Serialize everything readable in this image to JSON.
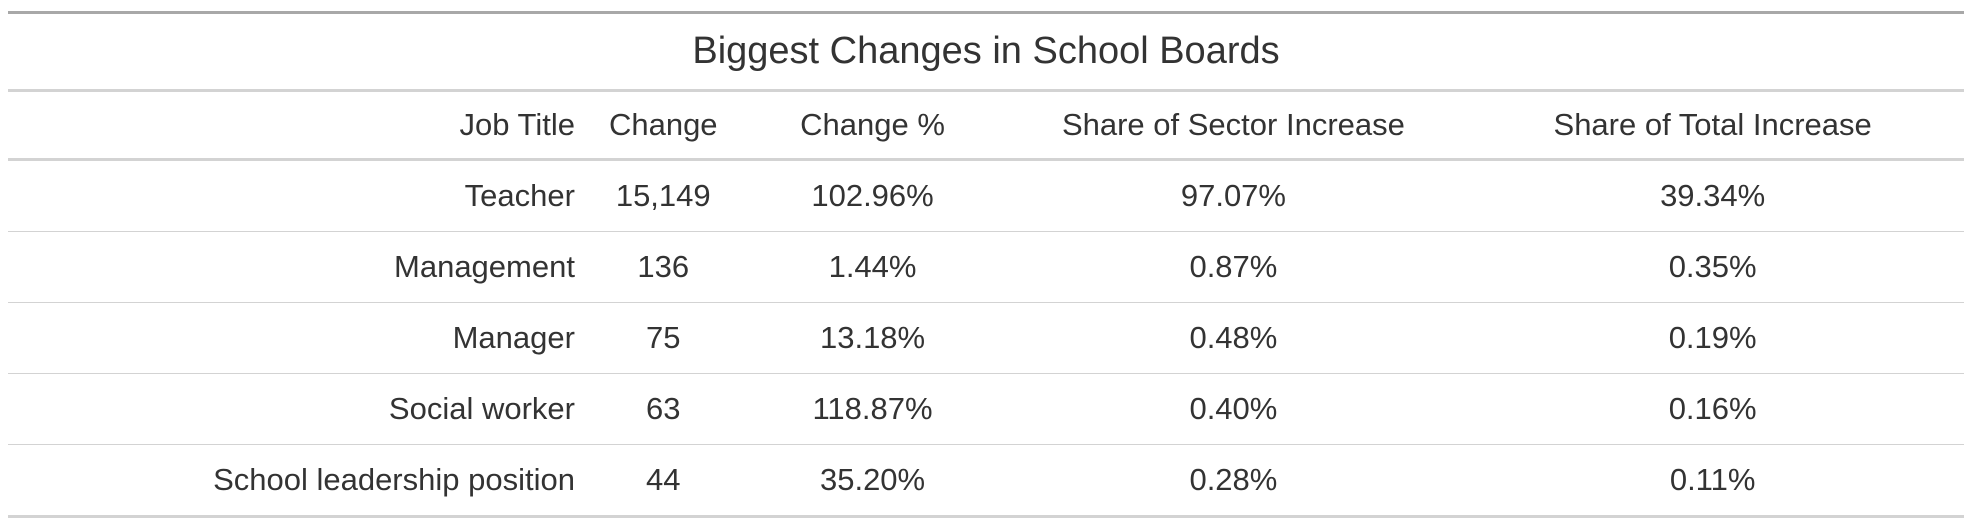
{
  "table": {
    "title": "Biggest Changes in School Boards",
    "columns": [
      "Job Title",
      "Change",
      "Change %",
      "Share of Sector Increase",
      "Share of Total Increase"
    ],
    "rows": [
      [
        "Teacher",
        "15,149",
        "102.96%",
        "97.07%",
        "39.34%"
      ],
      [
        "Management",
        "136",
        "1.44%",
        "0.87%",
        "0.35%"
      ],
      [
        "Manager",
        "75",
        "13.18%",
        "0.48%",
        "0.19%"
      ],
      [
        "Social worker",
        "63",
        "118.87%",
        "0.40%",
        "0.16%"
      ],
      [
        "School leadership position",
        "44",
        "35.20%",
        "0.28%",
        "0.11%"
      ]
    ]
  }
}
